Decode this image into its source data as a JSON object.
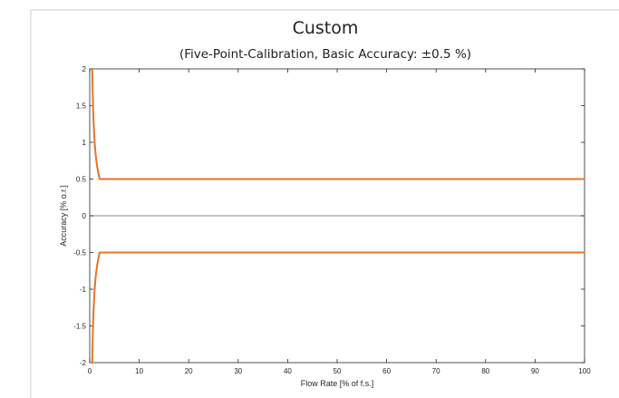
{
  "chart_data": {
    "type": "line",
    "title": "Custom",
    "subtitle": "(Five-Point-Calibration, Basic Accuracy: ±0.5 %)",
    "xlabel": "Flow Rate [% of f.s.]",
    "ylabel": "Accuracy [% o.r.]",
    "xlim": [
      0,
      100
    ],
    "ylim": [
      -2,
      2
    ],
    "xticks": [
      0,
      10,
      20,
      30,
      40,
      50,
      60,
      70,
      80,
      90,
      100
    ],
    "yticks": [
      -2,
      -1.5,
      -1,
      -0.5,
      0,
      0.5,
      1,
      1.5,
      2
    ],
    "grid": false,
    "zero_line": true,
    "line_color": "#e8742a",
    "zero_line_color": "#b0b0b0",
    "series": [
      {
        "x": [
          0.5,
          0.6,
          0.7,
          0.8,
          1.0,
          1.2,
          1.5,
          1.8,
          2.0,
          3,
          5,
          10,
          20,
          30,
          40,
          50,
          60,
          70,
          80,
          90,
          100
        ],
        "values": [
          2.0,
          1.67,
          1.43,
          1.25,
          1.0,
          0.83,
          0.67,
          0.56,
          0.5,
          0.5,
          0.5,
          0.5,
          0.5,
          0.5,
          0.5,
          0.5,
          0.5,
          0.5,
          0.5,
          0.5,
          0.5
        ]
      },
      {
        "x": [
          0.5,
          0.6,
          0.7,
          0.8,
          1.0,
          1.2,
          1.5,
          1.8,
          2.0,
          3,
          5,
          10,
          20,
          30,
          40,
          50,
          60,
          70,
          80,
          90,
          100
        ],
        "values": [
          -2.0,
          -1.67,
          -1.43,
          -1.25,
          -1.0,
          -0.83,
          -0.67,
          -0.56,
          -0.5,
          -0.5,
          -0.5,
          -0.5,
          -0.5,
          -0.5,
          -0.5,
          -0.5,
          -0.5,
          -0.5,
          -0.5,
          -0.5,
          -0.5
        ]
      }
    ]
  }
}
